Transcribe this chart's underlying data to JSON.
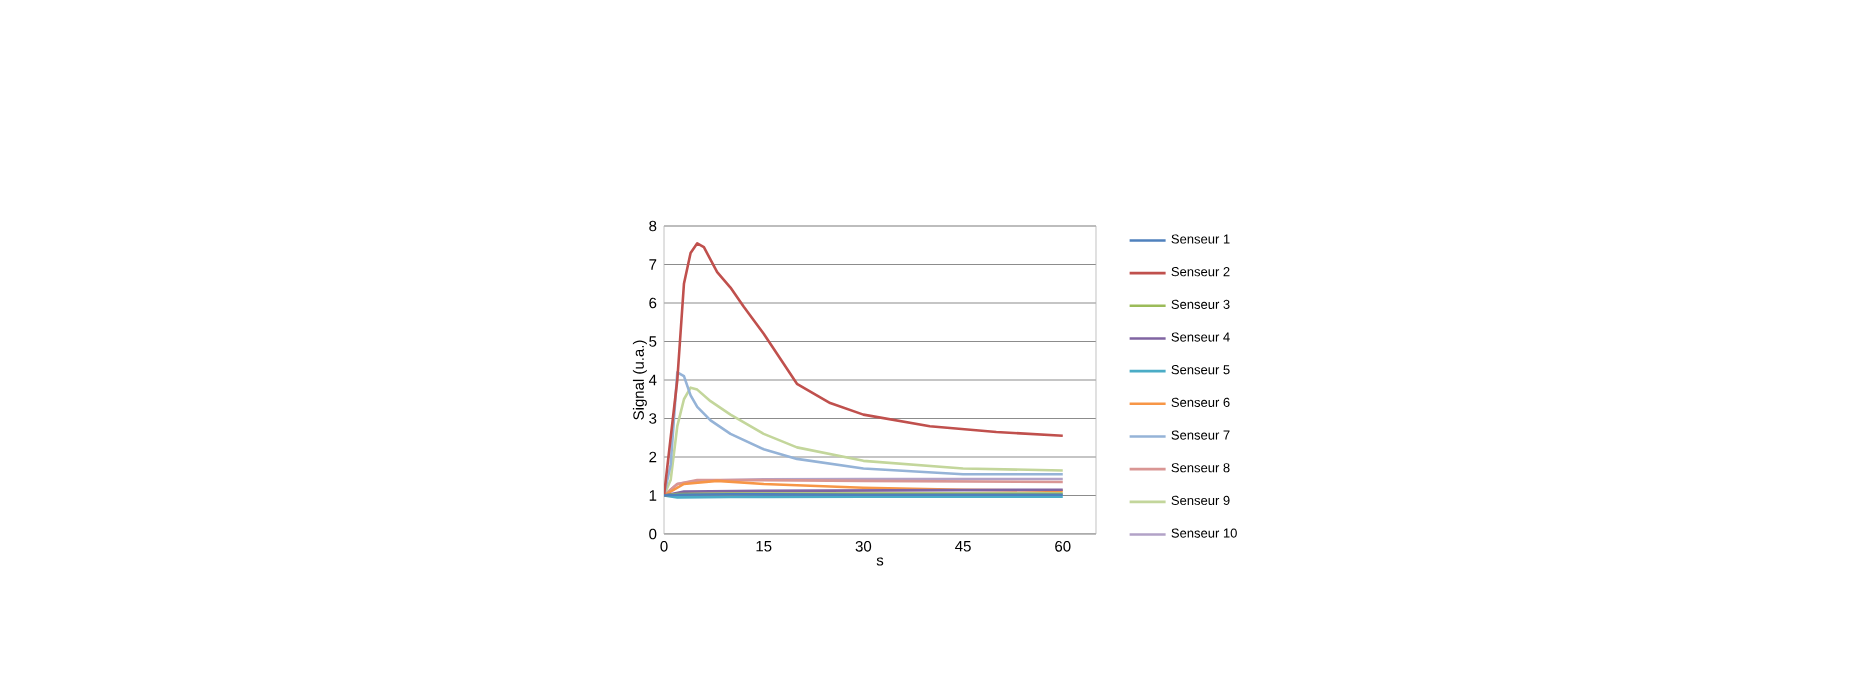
{
  "chart_data": {
    "type": "line",
    "xlabel": "s",
    "ylabel": "Signal (u.a.)",
    "xlim": [
      0,
      65
    ],
    "xticks": [
      0,
      15,
      30,
      45,
      60
    ],
    "ylim": [
      0,
      8
    ],
    "yticks": [
      0,
      1,
      2,
      3,
      4,
      5,
      6,
      7,
      8
    ],
    "grid": "y",
    "legend": "right",
    "marker": "none",
    "line_style": "solid",
    "series": [
      {
        "name": "Senseur 1",
        "color": "#4f81bd",
        "x": [
          0,
          2,
          10,
          30,
          60
        ],
        "values": [
          1,
          1.02,
          1.03,
          1.02,
          1.02
        ]
      },
      {
        "name": "Senseur 2",
        "color": "#c0504d",
        "x": [
          0,
          2,
          3,
          4,
          5,
          6,
          8,
          10,
          12,
          15,
          20,
          25,
          30,
          40,
          50,
          60
        ],
        "values": [
          1,
          4,
          6.5,
          7.3,
          7.55,
          7.45,
          6.8,
          6.4,
          5.9,
          5.2,
          3.9,
          3.4,
          3.1,
          2.8,
          2.65,
          2.55
        ]
      },
      {
        "name": "Senseur 3",
        "color": "#9bbb59",
        "x": [
          0,
          2,
          10,
          30,
          60
        ],
        "values": [
          1,
          1.04,
          1.05,
          1.05,
          1.05
        ]
      },
      {
        "name": "Senseur 4",
        "color": "#8064a2",
        "x": [
          0,
          3,
          15,
          30,
          60
        ],
        "values": [
          1,
          1.1,
          1.12,
          1.13,
          1.15
        ]
      },
      {
        "name": "Senseur 5",
        "color": "#4bacc6",
        "x": [
          0,
          2,
          10,
          30,
          60
        ],
        "values": [
          1,
          0.95,
          0.96,
          0.97,
          0.97
        ]
      },
      {
        "name": "Senseur 6",
        "color": "#f79646",
        "x": [
          0,
          3,
          8,
          15,
          30,
          45,
          60
        ],
        "values": [
          1,
          1.3,
          1.38,
          1.3,
          1.2,
          1.15,
          1.12
        ]
      },
      {
        "name": "Senseur 7",
        "color": "#95b3d7",
        "x": [
          0,
          1,
          2,
          3,
          4,
          5,
          7,
          10,
          15,
          20,
          30,
          45,
          60
        ],
        "values": [
          1,
          1.8,
          4.2,
          4.1,
          3.6,
          3.3,
          2.95,
          2.6,
          2.2,
          1.95,
          1.7,
          1.55,
          1.55
        ]
      },
      {
        "name": "Senseur 8",
        "color": "#d99694",
        "x": [
          0,
          2,
          5,
          15,
          30,
          60
        ],
        "values": [
          1,
          1.3,
          1.4,
          1.4,
          1.38,
          1.35
        ]
      },
      {
        "name": "Senseur 9",
        "color": "#c3d69b",
        "x": [
          0,
          1,
          2,
          3,
          4,
          5,
          7,
          10,
          15,
          20,
          30,
          45,
          60
        ],
        "values": [
          1,
          1.4,
          2.8,
          3.5,
          3.8,
          3.75,
          3.45,
          3.1,
          2.6,
          2.25,
          1.9,
          1.7,
          1.65
        ]
      },
      {
        "name": "Senseur 10",
        "color": "#b2a2c7",
        "x": [
          0,
          2,
          5,
          15,
          30,
          60
        ],
        "values": [
          1,
          1.3,
          1.38,
          1.42,
          1.43,
          1.43
        ]
      }
    ]
  }
}
